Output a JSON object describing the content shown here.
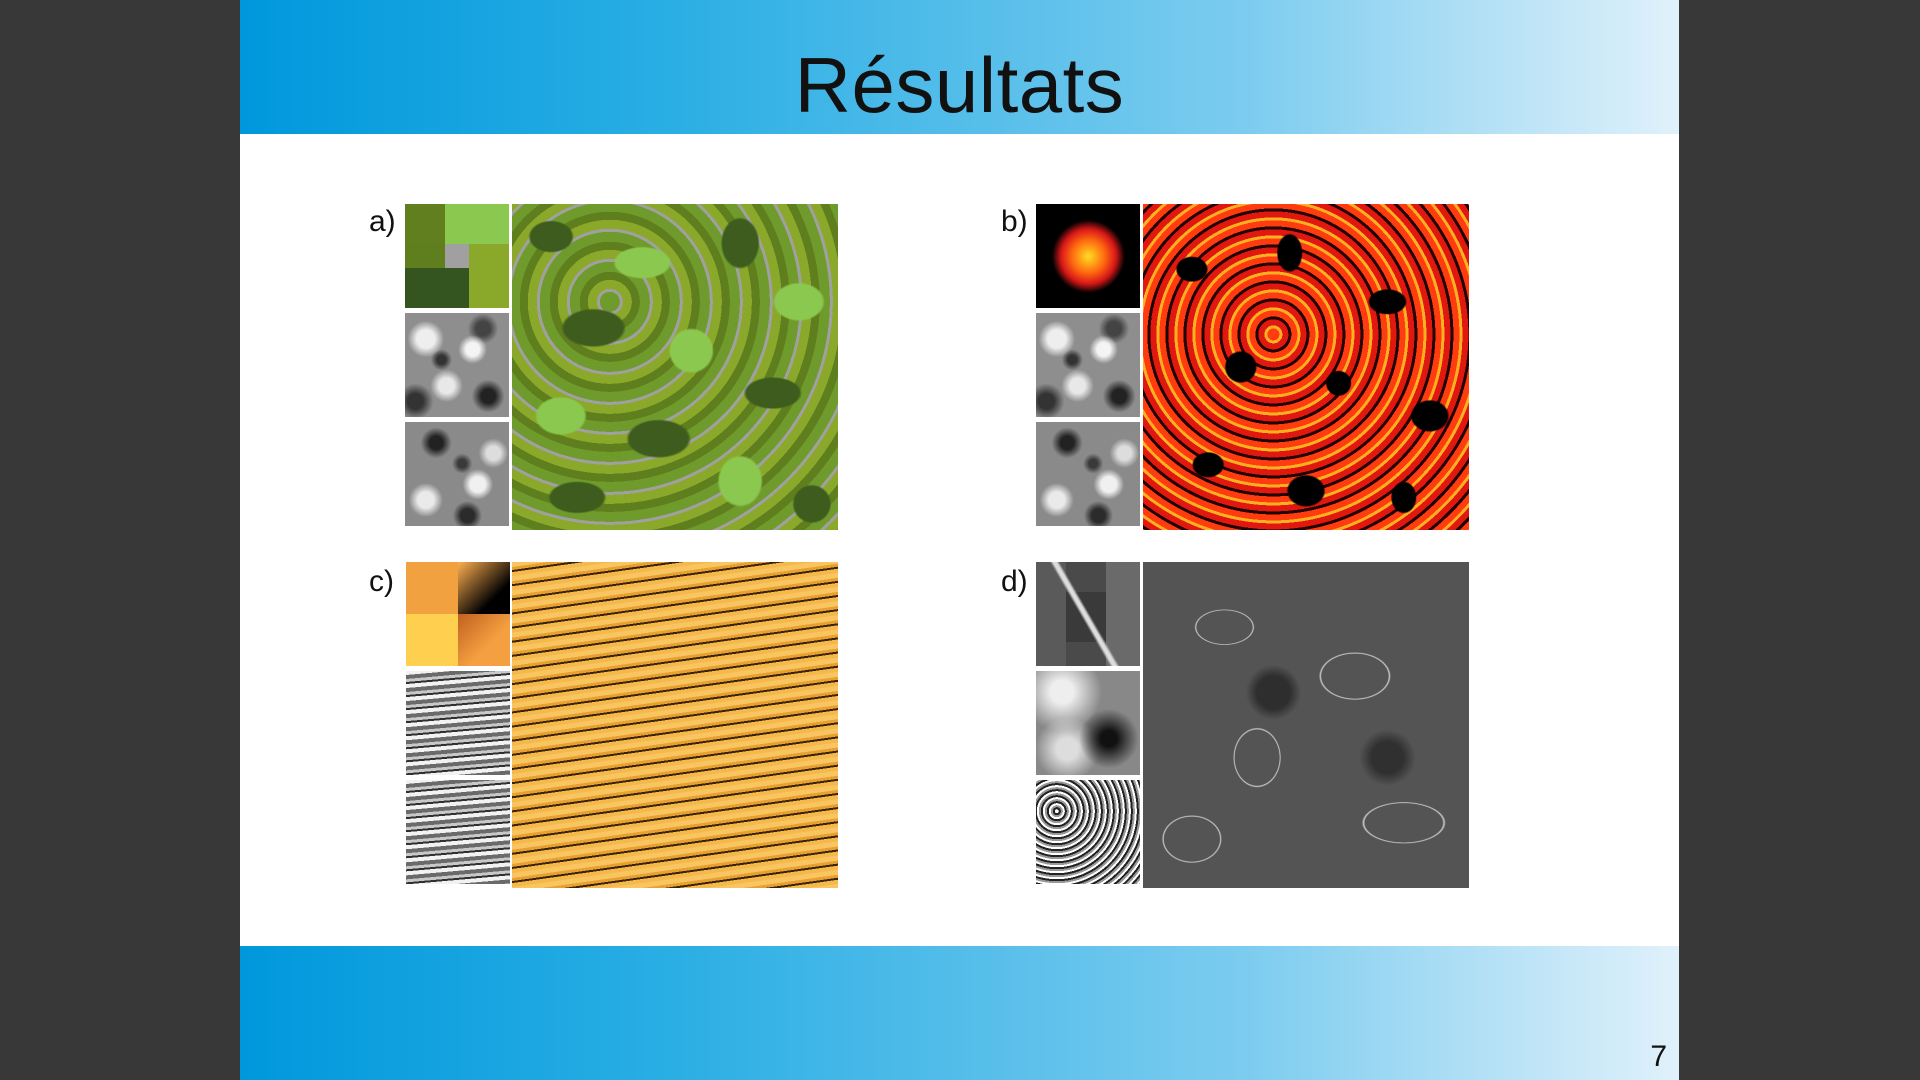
{
  "slide": {
    "title": "Résultats",
    "page_number": "7"
  },
  "panels": [
    {
      "label": "a)",
      "palette_colors": [
        "#627f1f",
        "#8bc84f",
        "#a0a0a0",
        "#8aa82a",
        "#345420"
      ]
    },
    {
      "label": "b)",
      "palette_colors": [
        "#ffdd22",
        "#ff6a10",
        "#d81818",
        "#000000"
      ]
    },
    {
      "label": "c)",
      "palette_colors": [
        "#f2a140",
        "#ffd050",
        "#c06020"
      ]
    },
    {
      "label": "d)",
      "palette_colors": [
        "#5a5a5a",
        "#3a3a3a",
        "#dddddd"
      ]
    }
  ],
  "colors": {
    "header_gradient_start": "#0098dc",
    "header_gradient_end": "#e0f1fb",
    "background": "#383838"
  }
}
